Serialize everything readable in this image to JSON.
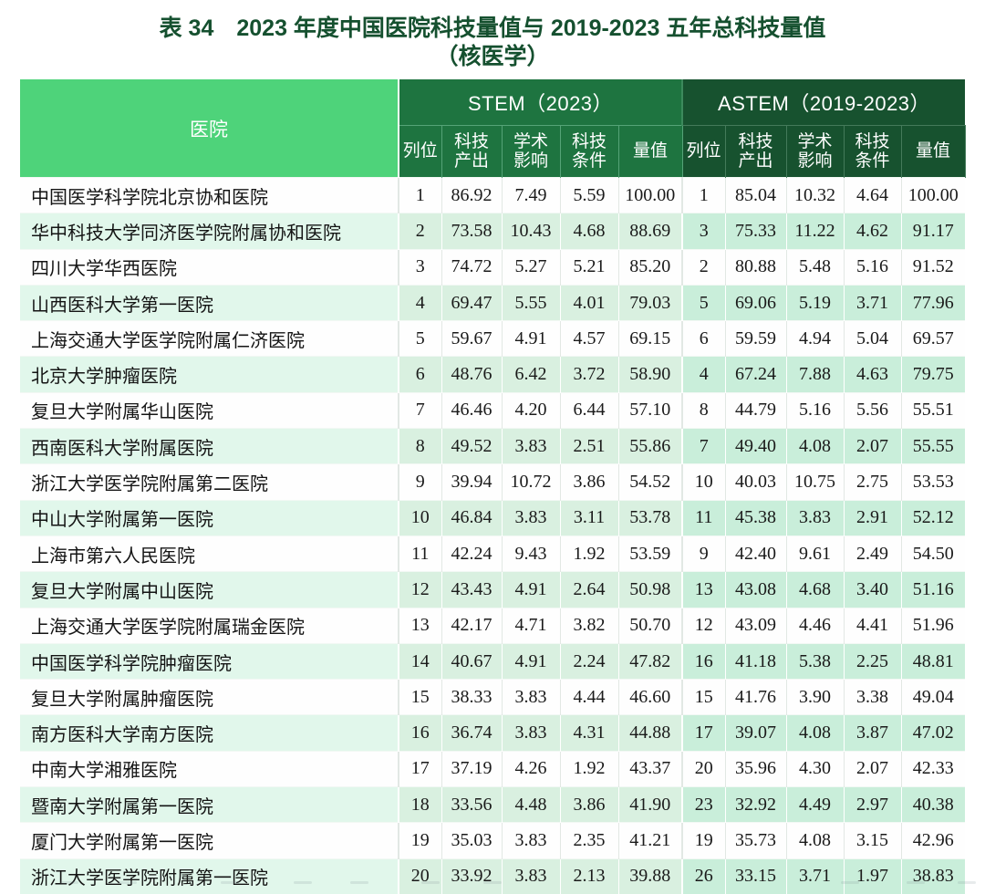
{
  "title": {
    "line1": "表 34　2023 年度中国医院科技量值与 2019-2023 五年总科技量值",
    "line2": "（核医学）"
  },
  "table": {
    "hospital_header": "医院",
    "groups": [
      {
        "label": "STEM（2023）"
      },
      {
        "label": "ASTEM（2019-2023）"
      }
    ],
    "sub_headers": [
      "列位",
      "科技\n产出",
      "学术\n影响",
      "科技\n条件",
      "量值"
    ],
    "rows": [
      {
        "hospital": "中国医学科学院北京协和医院",
        "stem": [
          "1",
          "86.92",
          "7.49",
          "5.59",
          "100.00"
        ],
        "astem": [
          "1",
          "85.04",
          "10.32",
          "4.64",
          "100.00"
        ]
      },
      {
        "hospital": "华中科技大学同济医学院附属协和医院",
        "stem": [
          "2",
          "73.58",
          "10.43",
          "4.68",
          "88.69"
        ],
        "astem": [
          "3",
          "75.33",
          "11.22",
          "4.62",
          "91.17"
        ]
      },
      {
        "hospital": "四川大学华西医院",
        "stem": [
          "3",
          "74.72",
          "5.27",
          "5.21",
          "85.20"
        ],
        "astem": [
          "2",
          "80.88",
          "5.48",
          "5.16",
          "91.52"
        ]
      },
      {
        "hospital": "山西医科大学第一医院",
        "stem": [
          "4",
          "69.47",
          "5.55",
          "4.01",
          "79.03"
        ],
        "astem": [
          "5",
          "69.06",
          "5.19",
          "3.71",
          "77.96"
        ]
      },
      {
        "hospital": "上海交通大学医学院附属仁济医院",
        "stem": [
          "5",
          "59.67",
          "4.91",
          "4.57",
          "69.15"
        ],
        "astem": [
          "6",
          "59.59",
          "4.94",
          "5.04",
          "69.57"
        ]
      },
      {
        "hospital": "北京大学肿瘤医院",
        "stem": [
          "6",
          "48.76",
          "6.42",
          "3.72",
          "58.90"
        ],
        "astem": [
          "4",
          "67.24",
          "7.88",
          "4.63",
          "79.75"
        ]
      },
      {
        "hospital": "复旦大学附属华山医院",
        "stem": [
          "7",
          "46.46",
          "4.20",
          "6.44",
          "57.10"
        ],
        "astem": [
          "8",
          "44.79",
          "5.16",
          "5.56",
          "55.51"
        ]
      },
      {
        "hospital": "西南医科大学附属医院",
        "stem": [
          "8",
          "49.52",
          "3.83",
          "2.51",
          "55.86"
        ],
        "astem": [
          "7",
          "49.40",
          "4.08",
          "2.07",
          "55.55"
        ]
      },
      {
        "hospital": "浙江大学医学院附属第二医院",
        "stem": [
          "9",
          "39.94",
          "10.72",
          "3.86",
          "54.52"
        ],
        "astem": [
          "10",
          "40.03",
          "10.75",
          "2.75",
          "53.53"
        ]
      },
      {
        "hospital": "中山大学附属第一医院",
        "stem": [
          "10",
          "46.84",
          "3.83",
          "3.11",
          "53.78"
        ],
        "astem": [
          "11",
          "45.38",
          "3.83",
          "2.91",
          "52.12"
        ]
      },
      {
        "hospital": "上海市第六人民医院",
        "stem": [
          "11",
          "42.24",
          "9.43",
          "1.92",
          "53.59"
        ],
        "astem": [
          "9",
          "42.40",
          "9.61",
          "2.49",
          "54.50"
        ]
      },
      {
        "hospital": "复旦大学附属中山医院",
        "stem": [
          "12",
          "43.43",
          "4.91",
          "2.64",
          "50.98"
        ],
        "astem": [
          "13",
          "43.08",
          "4.68",
          "3.40",
          "51.16"
        ]
      },
      {
        "hospital": "上海交通大学医学院附属瑞金医院",
        "stem": [
          "13",
          "42.17",
          "4.71",
          "3.82",
          "50.70"
        ],
        "astem": [
          "12",
          "43.09",
          "4.46",
          "4.41",
          "51.96"
        ]
      },
      {
        "hospital": "中国医学科学院肿瘤医院",
        "stem": [
          "14",
          "40.67",
          "4.91",
          "2.24",
          "47.82"
        ],
        "astem": [
          "16",
          "41.18",
          "5.38",
          "2.25",
          "48.81"
        ]
      },
      {
        "hospital": "复旦大学附属肿瘤医院",
        "stem": [
          "15",
          "38.33",
          "3.83",
          "4.44",
          "46.60"
        ],
        "astem": [
          "15",
          "41.76",
          "3.90",
          "3.38",
          "49.04"
        ]
      },
      {
        "hospital": "南方医科大学南方医院",
        "stem": [
          "16",
          "36.74",
          "3.83",
          "4.31",
          "44.88"
        ],
        "astem": [
          "17",
          "39.07",
          "4.08",
          "3.87",
          "47.02"
        ]
      },
      {
        "hospital": "中南大学湘雅医院",
        "stem": [
          "17",
          "37.19",
          "4.26",
          "1.92",
          "43.37"
        ],
        "astem": [
          "20",
          "35.96",
          "4.30",
          "2.07",
          "42.33"
        ]
      },
      {
        "hospital": "暨南大学附属第一医院",
        "stem": [
          "18",
          "33.56",
          "4.48",
          "3.86",
          "41.90"
        ],
        "astem": [
          "23",
          "32.92",
          "4.49",
          "2.97",
          "40.38"
        ]
      },
      {
        "hospital": "厦门大学附属第一医院",
        "stem": [
          "19",
          "35.03",
          "3.83",
          "2.35",
          "41.21"
        ],
        "astem": [
          "19",
          "35.73",
          "4.08",
          "3.15",
          "42.96"
        ]
      },
      {
        "hospital": "浙江大学医学院附属第一医院",
        "stem": [
          "20",
          "33.92",
          "3.83",
          "2.13",
          "39.88"
        ],
        "astem": [
          "26",
          "33.15",
          "3.71",
          "1.97",
          "38.83"
        ]
      }
    ]
  },
  "colors": {
    "title_green": "#15502f",
    "hospital_header_green": "#4ed37a",
    "stem_header_green": "#1e7440",
    "astem_header_green": "#17522f",
    "stripe_hospital": "#e1f7eb",
    "stripe_stem": "#d9f0e0",
    "stripe_astem": "#c9eeda"
  }
}
